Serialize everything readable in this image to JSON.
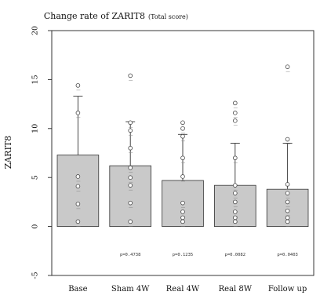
{
  "chart_data": {
    "type": "bar",
    "title": "Change rate of ZARIT8",
    "title_suffix": "(Total score)",
    "ylabel": "ZARIT8",
    "xlabel": "",
    "ylim": [
      -5,
      20
    ],
    "yticks": [
      -5,
      0,
      5,
      10,
      15,
      20
    ],
    "categories": [
      "Base",
      "Sham 4W",
      "Real 4W",
      "Real 8W",
      "Follow up"
    ],
    "values": [
      7.3,
      6.2,
      4.7,
      4.2,
      3.8
    ],
    "error_upper": [
      13.3,
      10.7,
      9.4,
      8.5,
      8.5
    ],
    "error_lower": [
      0,
      0,
      0,
      0,
      0
    ],
    "p_values": [
      "",
      "p=0.4738",
      "p=0.1235",
      "p=0.0082",
      "p=0.0403"
    ],
    "points": [
      [
        14.4,
        11.6,
        5.1,
        4.1,
        2.3,
        0.5
      ],
      [
        15.4,
        10.6,
        9.8,
        8.0,
        6.0,
        5.0,
        4.2,
        2.4,
        0.5
      ],
      [
        10.6,
        10.0,
        9.2,
        7.0,
        5.1,
        2.4,
        1.5,
        0.9,
        0.5
      ],
      [
        12.6,
        11.6,
        10.8,
        7.0,
        4.2,
        3.4,
        2.5,
        1.5,
        0.9,
        0.5
      ],
      [
        16.3,
        8.9,
        4.3,
        3.4,
        2.5,
        1.6,
        0.9,
        0.5
      ]
    ],
    "bar_color": "#c9c9c9",
    "grid": false
  }
}
